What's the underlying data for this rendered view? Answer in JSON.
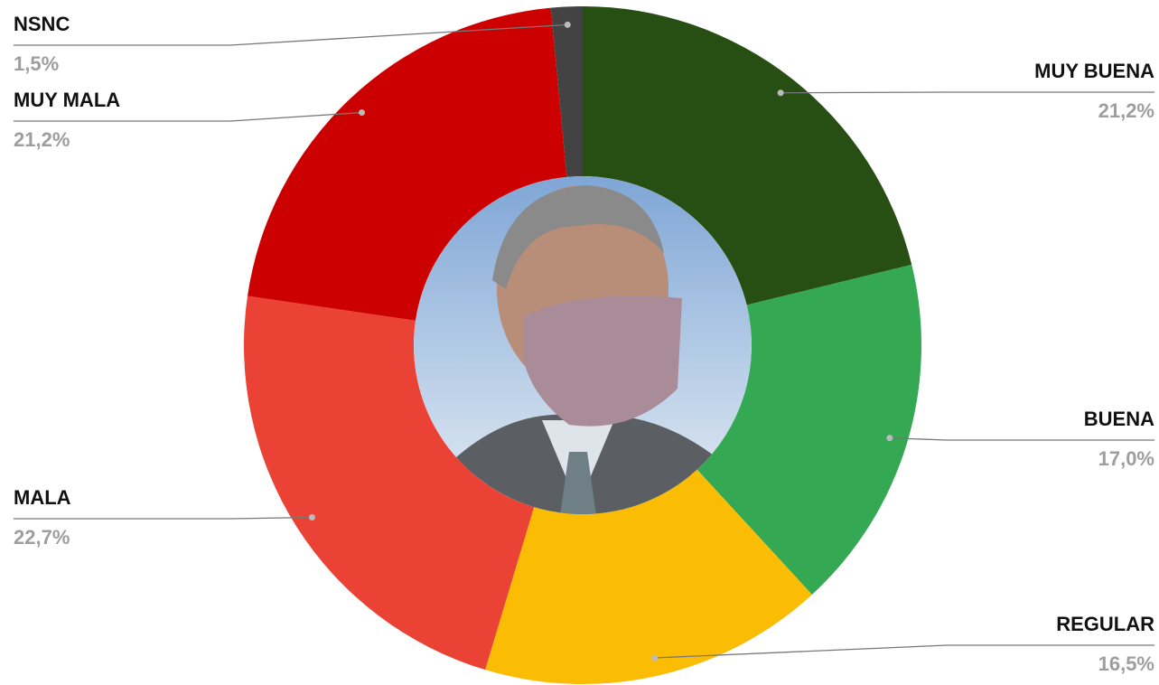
{
  "chart_data": {
    "type": "donut",
    "categories": [
      "MUY BUENA",
      "BUENA",
      "REGULAR",
      "MALA",
      "MUY MALA",
      "NSNC"
    ],
    "values": [
      21.2,
      17.0,
      16.5,
      22.7,
      21.2,
      1.5
    ],
    "value_labels": [
      "21,2%",
      "17,0%",
      "16,5%",
      "22,7%",
      "21,2%",
      "1,5%"
    ],
    "colors": [
      "#274e13",
      "#34a853",
      "#fbbc04",
      "#ea4335",
      "#cc0000",
      "#434343"
    ]
  }
}
